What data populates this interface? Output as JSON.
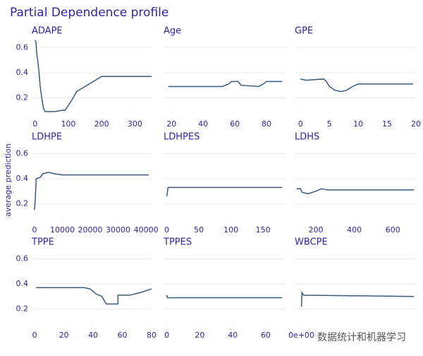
{
  "title": "Partial Dependence profile",
  "y_label": "average prediction",
  "watermark": "数据统计和机器学习",
  "chart_data": [
    {
      "type": "line",
      "title": "ADAPE",
      "color": "#3b5a7a",
      "grid": true,
      "x": [
        0,
        3,
        5,
        8,
        10,
        12,
        15,
        20,
        25,
        30,
        60,
        80,
        90,
        110,
        125,
        150,
        200,
        350
      ],
      "values": [
        0.66,
        0.64,
        0.55,
        0.5,
        0.45,
        0.4,
        0.3,
        0.2,
        0.12,
        0.09,
        0.09,
        0.1,
        0.1,
        0.18,
        0.25,
        0.29,
        0.37,
        0.37
      ],
      "xlim": [
        -10,
        350
      ],
      "xticks": [
        0,
        100,
        200,
        300
      ],
      "ylim": [
        0.09,
        0.67
      ],
      "yticks": [
        0.2,
        0.4,
        0.6
      ]
    },
    {
      "type": "line",
      "title": "Age",
      "color": "#3b5a7a",
      "grid": true,
      "x": [
        18,
        52,
        56,
        58,
        62,
        64,
        75,
        78,
        80,
        90
      ],
      "values": [
        0.29,
        0.29,
        0.31,
        0.33,
        0.33,
        0.3,
        0.29,
        0.31,
        0.33,
        0.33
      ],
      "xlim": [
        15,
        92
      ],
      "xticks": [
        20,
        40,
        60,
        80
      ],
      "ylim": [
        0.09,
        0.67
      ],
      "yticks": [
        0.2,
        0.4,
        0.6
      ]
    },
    {
      "type": "line",
      "title": "GPE",
      "color": "#3b5a7a",
      "grid": true,
      "x": [
        0,
        1,
        4,
        4.5,
        5,
        6,
        7,
        8,
        9,
        10,
        19.5
      ],
      "values": [
        0.35,
        0.34,
        0.35,
        0.33,
        0.29,
        0.26,
        0.25,
        0.26,
        0.29,
        0.31,
        0.31
      ],
      "xlim": [
        -1,
        20
      ],
      "xticks": [
        0,
        5,
        10,
        15,
        20
      ],
      "ylim": [
        0.09,
        0.67
      ],
      "yticks": [
        0.2,
        0.4,
        0.6
      ]
    },
    {
      "type": "line",
      "title": "LDHPE",
      "color": "#3b5a7a",
      "grid": true,
      "x": [
        0,
        300,
        600,
        2000,
        3000,
        5000,
        7000,
        10000,
        41000
      ],
      "values": [
        0.15,
        0.25,
        0.4,
        0.41,
        0.44,
        0.45,
        0.44,
        0.43,
        0.43
      ],
      "xlim": [
        -1000,
        42000
      ],
      "xticks": [
        0,
        10000,
        20000,
        30000,
        40000
      ],
      "ylim": [
        0.09,
        0.67
      ],
      "yticks": [
        0.2,
        0.4,
        0.6
      ]
    },
    {
      "type": "line",
      "title": "LDHPES",
      "color": "#3b5a7a",
      "grid": true,
      "x": [
        0,
        2,
        5,
        180
      ],
      "values": [
        0.26,
        0.33,
        0.33,
        0.33
      ],
      "xlim": [
        -5,
        185
      ],
      "xticks": [
        0,
        50,
        100,
        150
      ],
      "ylim": [
        0.09,
        0.67
      ],
      "yticks": [
        0.2,
        0.4,
        0.6
      ]
    },
    {
      "type": "line",
      "title": "LDHS",
      "color": "#3b5a7a",
      "grid": true,
      "x": [
        100,
        120,
        125,
        130,
        160,
        180,
        200,
        230,
        260,
        710
      ],
      "values": [
        0.32,
        0.32,
        0.3,
        0.29,
        0.28,
        0.29,
        0.3,
        0.32,
        0.31,
        0.31
      ],
      "xlim": [
        90,
        720
      ],
      "xticks": [
        200,
        400,
        600
      ],
      "ylim": [
        0.09,
        0.67
      ],
      "yticks": [
        0.2,
        0.4,
        0.6
      ]
    },
    {
      "type": "line",
      "title": "TPPE",
      "color": "#3b5a7a",
      "grid": true,
      "x": [
        1,
        34,
        38,
        42,
        46,
        49,
        57,
        57,
        65,
        72,
        80
      ],
      "values": [
        0.37,
        0.37,
        0.36,
        0.32,
        0.3,
        0.24,
        0.24,
        0.31,
        0.31,
        0.33,
        0.36
      ],
      "xlim": [
        -2,
        80
      ],
      "xticks": [
        0,
        20,
        40,
        60,
        80
      ],
      "ylim": [
        0.09,
        0.67
      ],
      "yticks": [
        0.2,
        0.4,
        0.6
      ]
    },
    {
      "type": "line",
      "title": "TPPES",
      "color": "#3b5a7a",
      "grid": true,
      "x": [
        0,
        0.3,
        70
      ],
      "values": [
        0.31,
        0.29,
        0.29
      ],
      "xlim": [
        -2,
        72
      ],
      "xticks": [
        0,
        20,
        40,
        60
      ],
      "ylim": [
        0.09,
        0.67
      ],
      "yticks": [
        0.2,
        0.4,
        0.6
      ]
    },
    {
      "type": "line",
      "title": "WBCPE",
      "color": "#3b5a7a",
      "grid": true,
      "x": [
        0,
        0.005,
        0.02,
        1
      ],
      "values": [
        0.22,
        0.33,
        0.31,
        0.3
      ],
      "xlim": [
        -0.06,
        1.02
      ],
      "xticks": [
        {
          "value": 0,
          "label": "0e+00"
        }
      ],
      "ylim": [
        0.09,
        0.67
      ],
      "yticks": [
        0.2,
        0.4,
        0.6
      ]
    }
  ]
}
